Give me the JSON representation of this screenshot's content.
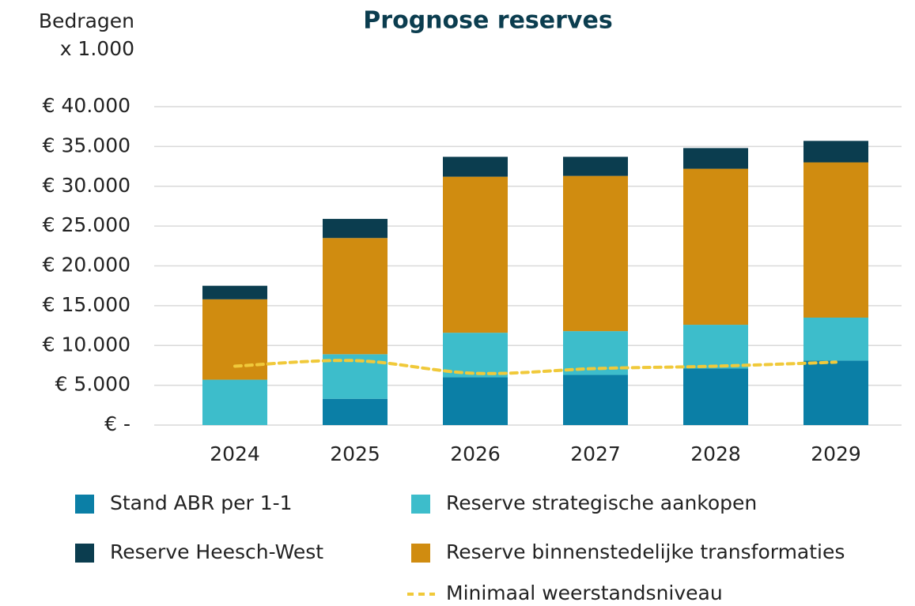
{
  "chart_data": {
    "type": "bar",
    "stacked": true,
    "title": "Prognose reserves",
    "y_label": [
      "Bedragen",
      "x 1.000"
    ],
    "categories": [
      "2024",
      "2025",
      "2026",
      "2027",
      "2028",
      "2029"
    ],
    "series": [
      {
        "name": "Stand ABR per 1-1",
        "color": "#0b7fa6",
        "values": [
          0,
          3300,
          6000,
          6300,
          7100,
          8100
        ]
      },
      {
        "name": "Reserve strategische aankopen",
        "color": "#3dbdcb",
        "values": [
          5700,
          5600,
          5600,
          5500,
          5500,
          5400
        ]
      },
      {
        "name": "Reserve binnenstedelijke transformaties",
        "color": "#d08c10",
        "values": [
          10100,
          14600,
          19600,
          19500,
          19600,
          19500
        ]
      },
      {
        "name": "Reserve Heesch-West",
        "color": "#0b3d4f",
        "values": [
          1700,
          2400,
          2500,
          2400,
          2600,
          2700
        ]
      },
      {
        "name": "Minimaal weerstandsniveau",
        "color": "#f0c93a",
        "type": "line",
        "dashed": true,
        "values": [
          7400,
          8100,
          6500,
          7100,
          7400,
          7900
        ]
      }
    ],
    "ylim": [
      0,
      40000
    ],
    "yticks": [
      {
        "value": 0,
        "label": "€ -"
      },
      {
        "value": 5000,
        "label": "€ 5.000"
      },
      {
        "value": 10000,
        "label": "€ 10.000"
      },
      {
        "value": 15000,
        "label": "€ 15.000"
      },
      {
        "value": 20000,
        "label": "€ 20.000"
      },
      {
        "value": 25000,
        "label": "€ 25.000"
      },
      {
        "value": 30000,
        "label": "€ 30.000"
      },
      {
        "value": 35000,
        "label": "€ 35.000"
      },
      {
        "value": 40000,
        "label": "€ 40.000"
      }
    ],
    "grid": true
  }
}
